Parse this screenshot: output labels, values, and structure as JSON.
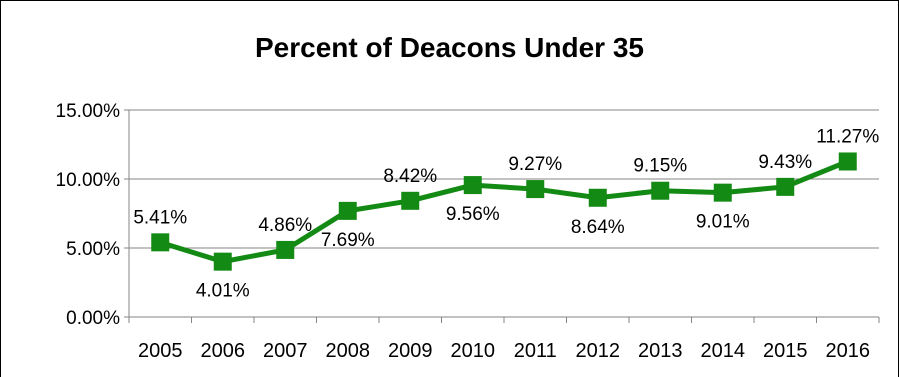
{
  "chart_data": {
    "type": "line",
    "title": "Percent of Deacons Under 35",
    "categories": [
      "2005",
      "2006",
      "2007",
      "2008",
      "2009",
      "2010",
      "2011",
      "2012",
      "2013",
      "2014",
      "2015",
      "2016"
    ],
    "series": [
      {
        "values": [
          5.41,
          4.01,
          4.86,
          7.69,
          8.42,
          9.56,
          9.27,
          8.64,
          9.15,
          9.01,
          9.43,
          11.27
        ],
        "labels": [
          "5.41%",
          "4.01%",
          "4.86%",
          "7.69%",
          "8.42%",
          "9.56%",
          "9.27%",
          "8.64%",
          "9.15%",
          "9.01%",
          "9.43%",
          "11.27%"
        ],
        "label_placement": [
          "above",
          "below",
          "above",
          "below",
          "above",
          "below",
          "above",
          "below",
          "above",
          "below",
          "above",
          "above"
        ],
        "color": "#138a13",
        "marker": "square"
      }
    ],
    "y_ticks": [
      0,
      5,
      10,
      15
    ],
    "y_tick_labels": [
      "0.00%",
      "5.00%",
      "10.00%",
      "15.00%"
    ],
    "ylim": [
      0,
      15
    ],
    "xlabel": "",
    "ylabel": "",
    "grid": "horizontal",
    "legend": "none",
    "colors": {
      "series": "#138a13",
      "grid": "#868686",
      "text": "#000000"
    }
  }
}
